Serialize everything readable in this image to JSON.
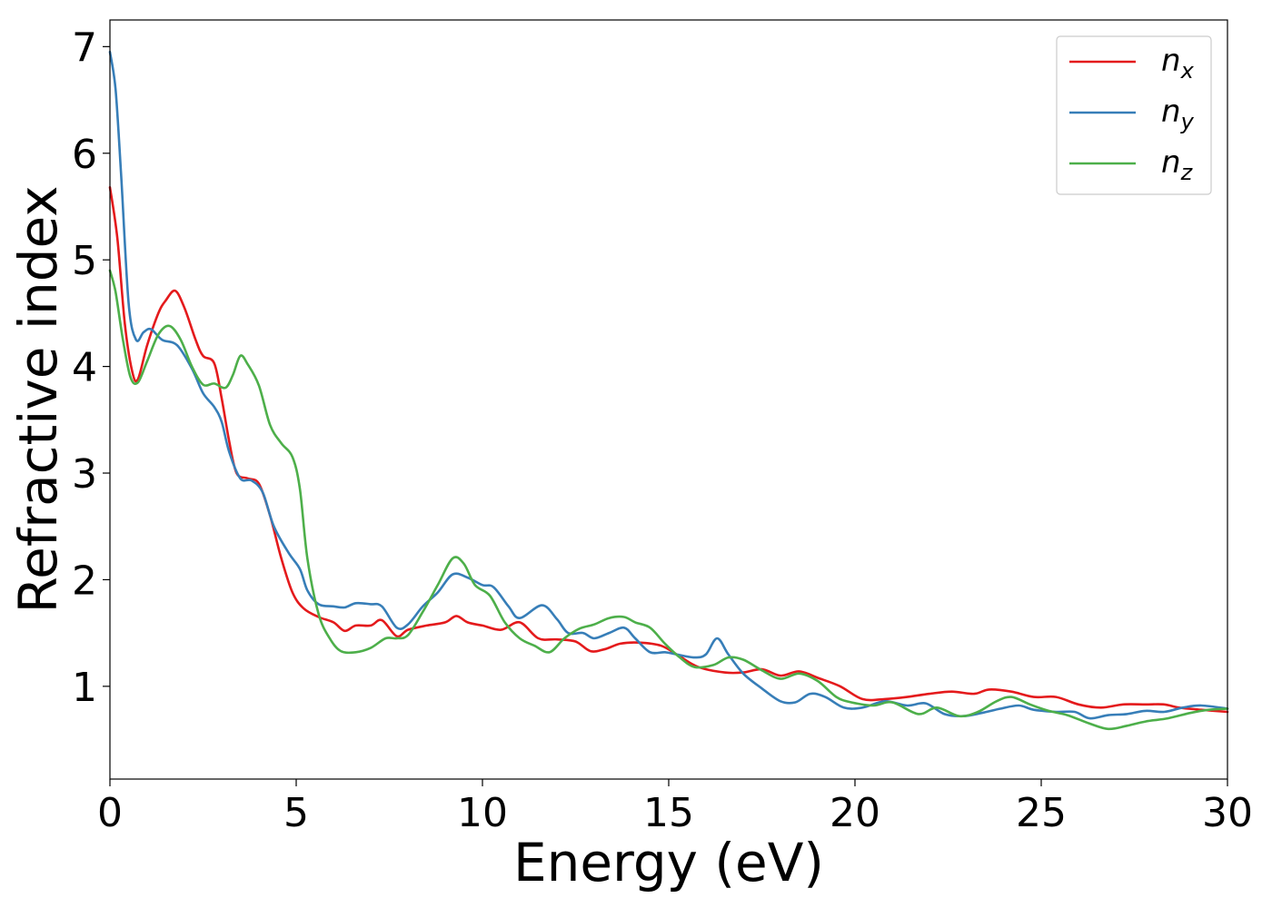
{
  "chart_data": {
    "type": "line",
    "title": "",
    "xlabel": "Energy (eV)",
    "ylabel": "Refractive index",
    "xlim": [
      0,
      30
    ],
    "ylim": [
      0.13,
      7.25
    ],
    "xticks": [
      0,
      5,
      10,
      15,
      20,
      25,
      30
    ],
    "xtick_labels": [
      "0",
      "5",
      "10",
      "15",
      "20",
      "25",
      "30"
    ],
    "yticks": [
      1,
      2,
      3,
      4,
      5,
      6,
      7
    ],
    "ytick_labels": [
      "1",
      "2",
      "3",
      "4",
      "5",
      "6",
      "7"
    ],
    "grid": false,
    "legend_position": "top-right",
    "series": [
      {
        "name": "n_x",
        "label_base": "n",
        "label_sub": "x",
        "color": "#e41a1c",
        "points": [
          [
            0,
            5.68
          ],
          [
            0.2,
            5.2
          ],
          [
            0.4,
            4.4
          ],
          [
            0.6,
            3.95
          ],
          [
            0.75,
            3.88
          ],
          [
            1.0,
            4.2
          ],
          [
            1.3,
            4.5
          ],
          [
            1.5,
            4.62
          ],
          [
            1.75,
            4.71
          ],
          [
            2.0,
            4.55
          ],
          [
            2.3,
            4.25
          ],
          [
            2.5,
            4.1
          ],
          [
            2.8,
            4.03
          ],
          [
            3.0,
            3.7
          ],
          [
            3.2,
            3.3
          ],
          [
            3.4,
            3.0
          ],
          [
            3.7,
            2.95
          ],
          [
            4.0,
            2.9
          ],
          [
            4.3,
            2.6
          ],
          [
            4.6,
            2.2
          ],
          [
            4.9,
            1.88
          ],
          [
            5.2,
            1.73
          ],
          [
            5.6,
            1.65
          ],
          [
            6.0,
            1.6
          ],
          [
            6.3,
            1.52
          ],
          [
            6.6,
            1.57
          ],
          [
            7.0,
            1.57
          ],
          [
            7.3,
            1.62
          ],
          [
            7.7,
            1.47
          ],
          [
            8.0,
            1.53
          ],
          [
            8.5,
            1.57
          ],
          [
            9.0,
            1.6
          ],
          [
            9.3,
            1.66
          ],
          [
            9.6,
            1.6
          ],
          [
            10.0,
            1.57
          ],
          [
            10.5,
            1.53
          ],
          [
            11.0,
            1.6
          ],
          [
            11.5,
            1.45
          ],
          [
            12.0,
            1.44
          ],
          [
            12.5,
            1.42
          ],
          [
            12.9,
            1.33
          ],
          [
            13.3,
            1.35
          ],
          [
            13.7,
            1.4
          ],
          [
            14.2,
            1.41
          ],
          [
            14.8,
            1.38
          ],
          [
            15.3,
            1.28
          ],
          [
            15.8,
            1.18
          ],
          [
            16.5,
            1.13
          ],
          [
            17.0,
            1.13
          ],
          [
            17.5,
            1.16
          ],
          [
            18.0,
            1.1
          ],
          [
            18.5,
            1.14
          ],
          [
            19.0,
            1.08
          ],
          [
            19.6,
            1.0
          ],
          [
            20.2,
            0.88
          ],
          [
            20.8,
            0.88
          ],
          [
            21.4,
            0.9
          ],
          [
            22.0,
            0.93
          ],
          [
            22.6,
            0.95
          ],
          [
            23.2,
            0.93
          ],
          [
            23.6,
            0.97
          ],
          [
            24.2,
            0.95
          ],
          [
            24.8,
            0.9
          ],
          [
            25.4,
            0.9
          ],
          [
            26.0,
            0.83
          ],
          [
            26.6,
            0.8
          ],
          [
            27.2,
            0.83
          ],
          [
            27.8,
            0.83
          ],
          [
            28.3,
            0.83
          ],
          [
            28.7,
            0.8
          ],
          [
            29.3,
            0.78
          ],
          [
            30.0,
            0.76
          ]
        ]
      },
      {
        "name": "n_y",
        "label_base": "n",
        "label_sub": "y",
        "color": "#377eb8",
        "points": [
          [
            0,
            6.95
          ],
          [
            0.15,
            6.6
          ],
          [
            0.3,
            5.8
          ],
          [
            0.5,
            4.6
          ],
          [
            0.7,
            4.25
          ],
          [
            0.9,
            4.32
          ],
          [
            1.1,
            4.35
          ],
          [
            1.4,
            4.25
          ],
          [
            1.8,
            4.2
          ],
          [
            2.2,
            3.98
          ],
          [
            2.5,
            3.75
          ],
          [
            2.8,
            3.62
          ],
          [
            3.0,
            3.48
          ],
          [
            3.2,
            3.2
          ],
          [
            3.5,
            2.95
          ],
          [
            3.8,
            2.93
          ],
          [
            4.1,
            2.82
          ],
          [
            4.4,
            2.5
          ],
          [
            4.8,
            2.25
          ],
          [
            5.1,
            2.1
          ],
          [
            5.3,
            1.9
          ],
          [
            5.6,
            1.77
          ],
          [
            6.0,
            1.75
          ],
          [
            6.3,
            1.74
          ],
          [
            6.6,
            1.78
          ],
          [
            7.0,
            1.77
          ],
          [
            7.3,
            1.75
          ],
          [
            7.7,
            1.55
          ],
          [
            8.0,
            1.58
          ],
          [
            8.4,
            1.75
          ],
          [
            8.8,
            1.88
          ],
          [
            9.2,
            2.05
          ],
          [
            9.6,
            2.02
          ],
          [
            10.0,
            1.95
          ],
          [
            10.3,
            1.93
          ],
          [
            10.7,
            1.75
          ],
          [
            11.0,
            1.64
          ],
          [
            11.6,
            1.76
          ],
          [
            12.0,
            1.63
          ],
          [
            12.3,
            1.5
          ],
          [
            12.7,
            1.5
          ],
          [
            13.0,
            1.45
          ],
          [
            13.4,
            1.5
          ],
          [
            13.8,
            1.55
          ],
          [
            14.1,
            1.45
          ],
          [
            14.5,
            1.32
          ],
          [
            14.9,
            1.32
          ],
          [
            15.2,
            1.3
          ],
          [
            15.7,
            1.27
          ],
          [
            16.0,
            1.3
          ],
          [
            16.3,
            1.45
          ],
          [
            16.6,
            1.3
          ],
          [
            17.0,
            1.12
          ],
          [
            17.5,
            0.98
          ],
          [
            18.0,
            0.86
          ],
          [
            18.4,
            0.85
          ],
          [
            18.8,
            0.93
          ],
          [
            19.2,
            0.9
          ],
          [
            19.7,
            0.8
          ],
          [
            20.2,
            0.8
          ],
          [
            20.8,
            0.86
          ],
          [
            21.4,
            0.82
          ],
          [
            21.9,
            0.84
          ],
          [
            22.4,
            0.74
          ],
          [
            22.9,
            0.72
          ],
          [
            23.4,
            0.75
          ],
          [
            23.9,
            0.79
          ],
          [
            24.4,
            0.82
          ],
          [
            24.8,
            0.78
          ],
          [
            25.4,
            0.76
          ],
          [
            25.9,
            0.76
          ],
          [
            26.3,
            0.7
          ],
          [
            26.8,
            0.73
          ],
          [
            27.3,
            0.74
          ],
          [
            27.8,
            0.77
          ],
          [
            28.3,
            0.76
          ],
          [
            28.8,
            0.8
          ],
          [
            29.3,
            0.82
          ],
          [
            30.0,
            0.79
          ]
        ]
      },
      {
        "name": "n_z",
        "label_base": "n",
        "label_sub": "z",
        "color": "#4daf4a",
        "points": [
          [
            0,
            4.9
          ],
          [
            0.15,
            4.7
          ],
          [
            0.35,
            4.25
          ],
          [
            0.55,
            3.9
          ],
          [
            0.75,
            3.85
          ],
          [
            1.0,
            4.05
          ],
          [
            1.3,
            4.3
          ],
          [
            1.6,
            4.38
          ],
          [
            1.9,
            4.25
          ],
          [
            2.2,
            4.0
          ],
          [
            2.5,
            3.83
          ],
          [
            2.8,
            3.84
          ],
          [
            3.1,
            3.8
          ],
          [
            3.3,
            3.92
          ],
          [
            3.5,
            4.1
          ],
          [
            3.7,
            4.02
          ],
          [
            4.0,
            3.82
          ],
          [
            4.3,
            3.45
          ],
          [
            4.6,
            3.28
          ],
          [
            4.9,
            3.15
          ],
          [
            5.1,
            2.85
          ],
          [
            5.3,
            2.2
          ],
          [
            5.6,
            1.68
          ],
          [
            5.9,
            1.45
          ],
          [
            6.2,
            1.33
          ],
          [
            6.6,
            1.32
          ],
          [
            7.0,
            1.36
          ],
          [
            7.4,
            1.45
          ],
          [
            7.7,
            1.45
          ],
          [
            8.0,
            1.48
          ],
          [
            8.4,
            1.7
          ],
          [
            8.8,
            1.95
          ],
          [
            9.2,
            2.2
          ],
          [
            9.5,
            2.15
          ],
          [
            9.8,
            1.95
          ],
          [
            10.2,
            1.85
          ],
          [
            10.6,
            1.6
          ],
          [
            11.0,
            1.45
          ],
          [
            11.4,
            1.38
          ],
          [
            11.8,
            1.32
          ],
          [
            12.2,
            1.45
          ],
          [
            12.6,
            1.54
          ],
          [
            13.0,
            1.58
          ],
          [
            13.4,
            1.64
          ],
          [
            13.8,
            1.65
          ],
          [
            14.1,
            1.6
          ],
          [
            14.5,
            1.55
          ],
          [
            14.9,
            1.4
          ],
          [
            15.3,
            1.27
          ],
          [
            15.7,
            1.18
          ],
          [
            16.2,
            1.2
          ],
          [
            16.6,
            1.27
          ],
          [
            17.0,
            1.25
          ],
          [
            17.5,
            1.15
          ],
          [
            18.0,
            1.07
          ],
          [
            18.5,
            1.12
          ],
          [
            19.0,
            1.05
          ],
          [
            19.5,
            0.9
          ],
          [
            19.9,
            0.85
          ],
          [
            20.5,
            0.82
          ],
          [
            21.0,
            0.85
          ],
          [
            21.7,
            0.74
          ],
          [
            22.2,
            0.8
          ],
          [
            22.8,
            0.72
          ],
          [
            23.3,
            0.76
          ],
          [
            23.8,
            0.86
          ],
          [
            24.2,
            0.9
          ],
          [
            24.7,
            0.83
          ],
          [
            25.2,
            0.77
          ],
          [
            25.7,
            0.73
          ],
          [
            26.3,
            0.65
          ],
          [
            26.8,
            0.6
          ],
          [
            27.3,
            0.63
          ],
          [
            27.8,
            0.67
          ],
          [
            28.4,
            0.7
          ],
          [
            29.0,
            0.75
          ],
          [
            29.5,
            0.78
          ],
          [
            30.0,
            0.79
          ]
        ]
      }
    ]
  }
}
